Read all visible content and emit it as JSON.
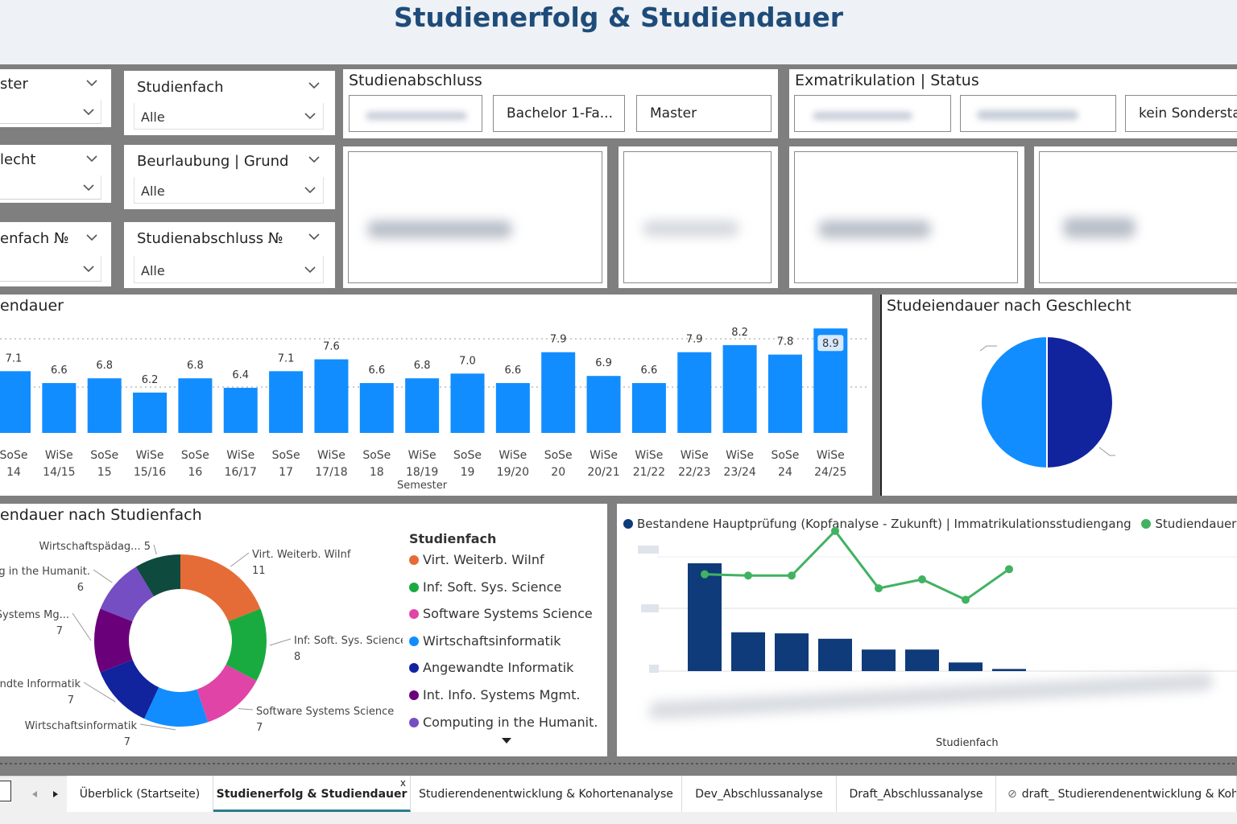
{
  "page_title": "Studienerfolg & Studiendauer",
  "slicers": {
    "col1": [
      {
        "label": "ster",
        "value": ""
      },
      {
        "label": "lecht",
        "value": ""
      },
      {
        "label": "enfach №",
        "value": ""
      }
    ],
    "col2": [
      {
        "label": "Studienfach",
        "value": "Alle"
      },
      {
        "label": "Beurlaubung | Grund",
        "value": "Alle"
      },
      {
        "label": "Studienabschluss №",
        "value": "Alle"
      }
    ]
  },
  "studienabschluss": {
    "title": "Studienabschluss",
    "tiles": [
      "",
      "Bachelor 1-Fa...",
      "Master"
    ]
  },
  "exmatrikulation": {
    "title": "Exmatrikulation | Status",
    "tiles": [
      "",
      "",
      "kein Sondersta"
    ]
  },
  "colors": {
    "primary": "#118dff",
    "navy": "#12239e",
    "dark_blue": "#0f3b7a",
    "green": "#41b261",
    "title": "#1e4c7a"
  },
  "bar_chart": {
    "title": "endauer",
    "chart_data": {
      "type": "bar",
      "categories": [
        [
          "SoSe",
          "14"
        ],
        [
          "WiSe",
          "14/15"
        ],
        [
          "SoSe",
          "15"
        ],
        [
          "WiSe",
          "15/16"
        ],
        [
          "SoSe",
          "16"
        ],
        [
          "WiSe",
          "16/17"
        ],
        [
          "SoSe",
          "17"
        ],
        [
          "WiSe",
          "17/18"
        ],
        [
          "SoSe",
          "18"
        ],
        [
          "WiSe",
          "18/19"
        ],
        [
          "SoSe",
          "19"
        ],
        [
          "WiSe",
          "19/20"
        ],
        [
          "SoSe",
          "20"
        ],
        [
          "WiSe",
          "20/21"
        ],
        [
          "WiSe",
          "21/22"
        ],
        [
          "WiSe",
          "22/23"
        ],
        [
          "WiSe",
          "23/24"
        ],
        [
          "SoSe",
          "24"
        ],
        [
          "WiSe",
          "24/25"
        ]
      ],
      "values": [
        7.1,
        6.6,
        6.8,
        6.2,
        6.8,
        6.4,
        7.1,
        7.6,
        6.6,
        6.8,
        7.0,
        6.6,
        7.9,
        6.9,
        6.6,
        7.9,
        8.2,
        7.8,
        8.9
      ],
      "labels": [
        "7.1",
        "6.6",
        "6.8",
        "6.2",
        "6.8",
        "6.4",
        "7.1",
        "7.6",
        "6.6",
        "6.8",
        "7.0",
        "6.6",
        "7.9",
        "6.9",
        "6.6",
        "7.9",
        "8.2",
        "7.8",
        "8.9"
      ],
      "highlighted_index": 18,
      "xlabel": "Semester",
      "color": "#118dff"
    }
  },
  "gender_pie": {
    "title": "Studeiendauer nach Geschlecht",
    "chart_data": {
      "type": "pie",
      "values": [
        50,
        50
      ],
      "colors": [
        "#12239e",
        "#118dff"
      ]
    }
  },
  "donut": {
    "title": "endauer nach Studienfach",
    "legend_title": "Studienfach",
    "chart_data": {
      "type": "pie",
      "slices": [
        {
          "name": "Virt. Weiterb. WiInf",
          "value": 11,
          "color": "#e66c37",
          "label": "Virt. Weiterb. WiInf"
        },
        {
          "name": "Inf: Soft. Sys. Science",
          "value": 8,
          "color": "#1aab40",
          "label": "Inf: Soft. Sys. Science"
        },
        {
          "name": "Software Systems Science",
          "value": 7,
          "color": "#e044a7",
          "label": "Software Systems Science"
        },
        {
          "name": "Wirtschaftsinformatik",
          "value": 7,
          "color": "#118dff",
          "label": "Wirtschaftsinformatik"
        },
        {
          "name": "Angewandte Informatik",
          "value": 7,
          "color": "#12239e",
          "label": "andte Informatik"
        },
        {
          "name": "Int. Info. Systems Mgmt.",
          "value": 7,
          "color": "#6b007b",
          "label": "Systems Mg..."
        },
        {
          "name": "Computing in the Humanit.",
          "value": 6,
          "color": "#744ec2",
          "label": "ng in the Humanit."
        },
        {
          "name": "Wirtschaftspädag...",
          "value": 5,
          "color": "#0f4a3e",
          "label": "Wirtschaftspädag... 5"
        }
      ],
      "legend": [
        "Virt. Weiterb. WiInf",
        "Inf: Soft. Sys. Science",
        "Software Systems Science",
        "Wirtschaftsinformatik",
        "Angewandte Informatik",
        "Int. Info. Systems Mgmt.",
        "Computing in the Humanit."
      ]
    }
  },
  "combo": {
    "legend_bar": "Bestandene Hauptprüfung (Kopfanalyse - Zukunft) | Immatrikulationsstudiengang",
    "legend_line": "Studiendauer",
    "xlabel": "Studienfach",
    "chart_data": {
      "type": "bar",
      "categories": [
        "",
        "",
        "",
        "",
        "",
        "",
        "",
        ""
      ],
      "series": [
        {
          "name": "Bestandene Hauptprüfung (Kopfanalyse - Zukunft) | Immatrikulationsstudiengang",
          "type": "bar",
          "values": [
            100,
            36,
            35,
            30,
            20,
            20,
            8,
            2
          ]
        },
        {
          "name": "Studiendauer",
          "type": "line",
          "values": [
            7.6,
            7.5,
            7.5,
            11,
            6.5,
            7.2,
            5.6,
            8
          ]
        }
      ],
      "y2lim": [
        0,
        12
      ]
    }
  },
  "tabs": [
    "Überblick (Startseite)",
    "Studienerfolg & Studiendauer",
    "Studierendenentwicklung & Kohortenanalyse",
    "Dev_Abschlussanalyse",
    "Draft_Abschlussanalyse",
    "draft_ Studierendenentwicklung & Kohort"
  ],
  "active_tab": 1,
  "close_glyph": "x"
}
